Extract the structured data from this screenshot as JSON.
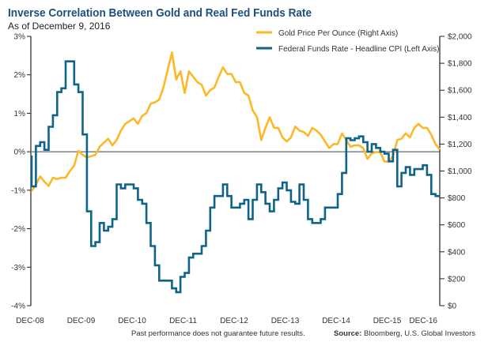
{
  "chart_data": {
    "type": "line",
    "title": "Inverse Correlation Between Gold and Real Fed Funds Rate",
    "subtitle": "As of December 9, 2016",
    "x_tick_labels": [
      "DEC-08",
      "DEC-09",
      "DEC-10",
      "DEC-11",
      "DEC-12",
      "DEC-13",
      "DEC-14",
      "DEC-15",
      "DEC-16"
    ],
    "x_range": [
      "2008-12",
      "2016-12"
    ],
    "left_axis": {
      "ylim": [
        -4,
        3
      ],
      "unit": "%",
      "tick_labels": [
        "3%",
        "2%",
        "1%",
        "0%",
        "-1%",
        "-2%",
        "-3%",
        "-4%"
      ],
      "tick_values": [
        3,
        2,
        1,
        0,
        -1,
        -2,
        -3,
        -4
      ]
    },
    "right_axis": {
      "ylim": [
        0,
        2000
      ],
      "unit": "$",
      "tick_labels": [
        "$2,000",
        "$1,800",
        "$1,600",
        "$1,400",
        "$1,200",
        "$1,000",
        "$800",
        "$600",
        "$400",
        "$200",
        "$0"
      ],
      "tick_values": [
        2000,
        1800,
        1600,
        1400,
        1200,
        1000,
        800,
        600,
        400,
        200,
        0
      ]
    },
    "grid": false,
    "zero_line": true,
    "legend_placement": "top-right",
    "series": [
      {
        "name": "Gold Price Per Ounce (Right Axis)",
        "axis": "right",
        "color": "#fbb829",
        "start": "2008-12",
        "frequency": "monthly",
        "values": [
          850,
          900,
          960,
          920,
          890,
          950,
          940,
          950,
          950,
          1000,
          1040,
          1150,
          1120,
          1100,
          1110,
          1120,
          1180,
          1210,
          1240,
          1190,
          1230,
          1300,
          1350,
          1370,
          1390,
          1350,
          1410,
          1430,
          1500,
          1510,
          1530,
          1620,
          1750,
          1880,
          1680,
          1740,
          1580,
          1740,
          1700,
          1660,
          1640,
          1560,
          1600,
          1620,
          1700,
          1770,
          1720,
          1720,
          1660,
          1660,
          1580,
          1560,
          1450,
          1400,
          1230,
          1320,
          1400,
          1320,
          1320,
          1250,
          1220,
          1250,
          1330,
          1300,
          1290,
          1260,
          1320,
          1300,
          1270,
          1220,
          1170,
          1200,
          1200,
          1280,
          1230,
          1180,
          1190,
          1190,
          1170,
          1090,
          1130,
          1140,
          1140,
          1070,
          1070,
          1110,
          1230,
          1240,
          1280,
          1250,
          1320,
          1350,
          1320,
          1320,
          1270,
          1200,
          1160
        ]
      },
      {
        "name": "Federal Funds Rate - Headline CPI (Left Axis)",
        "axis": "left",
        "color": "#0e6388",
        "start": "2008-12",
        "frequency": "monthly",
        "step": true,
        "values": [
          -0.9,
          0.15,
          0.25,
          0.05,
          0.65,
          0.95,
          1.55,
          1.65,
          2.35,
          2.35,
          1.75,
          1.55,
          0.45,
          -1.55,
          -2.45,
          -2.35,
          -1.85,
          -2.05,
          -1.95,
          -1.75,
          -0.85,
          -0.95,
          -0.85,
          -0.85,
          -0.95,
          -1.25,
          -1.35,
          -1.85,
          -2.45,
          -2.95,
          -3.35,
          -3.35,
          -3.35,
          -3.55,
          -3.65,
          -3.25,
          -3.15,
          -2.75,
          -2.65,
          -2.65,
          -2.45,
          -2.05,
          -1.45,
          -1.15,
          -1.15,
          -0.85,
          -1.15,
          -1.45,
          -1.45,
          -1.35,
          -1.25,
          -1.75,
          -1.25,
          -0.85,
          -1.05,
          -1.35,
          -1.55,
          -1.25,
          -0.95,
          -0.8,
          -1.0,
          -1.3,
          -1.35,
          -0.85,
          -1.25,
          -1.75,
          -1.85,
          -1.85,
          -1.75,
          -1.45,
          -1.45,
          -1.45,
          -1.1,
          -0.55,
          0.35,
          0.3,
          0.35,
          0.4,
          0.25,
          0.0,
          0.2,
          0.1,
          0.0,
          -0.05,
          -0.25,
          0.05,
          -0.9,
          -0.55,
          -0.4,
          -0.6,
          -0.45,
          -0.45,
          -0.35,
          -0.6,
          -1.1,
          -1.15,
          -1.15
        ]
      }
    ]
  },
  "footer": {
    "disclaimer": "Past performance does not guarantee future results.",
    "source_label": "Source:",
    "source_text": " Bloomberg, U.S. Global Investors"
  }
}
